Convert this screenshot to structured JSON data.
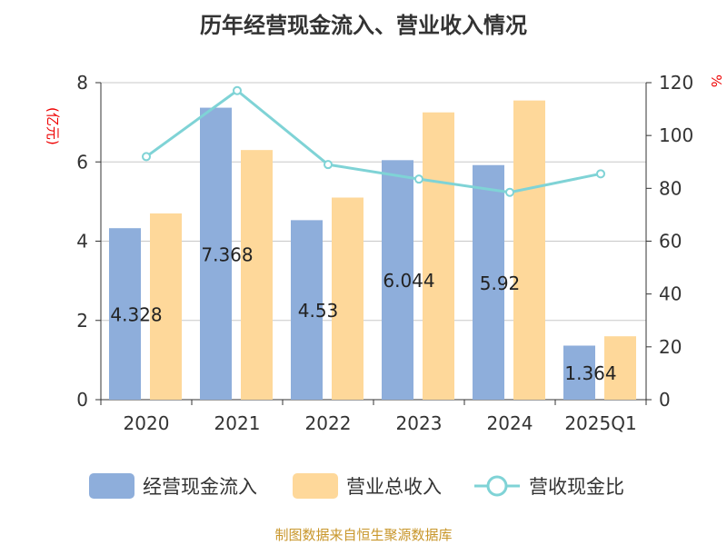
{
  "chart_data": {
    "type": "bar",
    "title": "历年经营现金流入、营业收入情况",
    "ylabel": "(亿元)",
    "y2label": "%",
    "categories": [
      "2020",
      "2021",
      "2022",
      "2023",
      "2024",
      "2025Q1"
    ],
    "ylim": [
      0,
      8
    ],
    "y2lim": [
      0,
      120
    ],
    "yticks": [
      "0",
      "2",
      "4",
      "6",
      "8"
    ],
    "y2ticks": [
      "0",
      "20",
      "40",
      "60",
      "80",
      "100",
      "120"
    ],
    "series": [
      {
        "name": "经营现金流入",
        "type": "bar",
        "color": "#8eaedb",
        "values": [
          4.328,
          7.368,
          4.53,
          6.044,
          5.92,
          1.364
        ],
        "labels": [
          "4.328",
          "7.368",
          "4.53",
          "6.044",
          "5.92",
          "1.364"
        ]
      },
      {
        "name": "营业总收入",
        "type": "bar",
        "color": "#fed89a",
        "values": [
          4.7,
          6.3,
          5.1,
          7.25,
          7.55,
          1.6
        ]
      },
      {
        "name": "营收现金比",
        "type": "line",
        "axis": "right",
        "color": "#7fd3d6",
        "values": [
          92,
          117,
          89,
          83.5,
          78.5,
          85.5
        ]
      }
    ],
    "grid": true,
    "legend": "bottom"
  },
  "source": "制图数据来自恒生聚源数据库"
}
